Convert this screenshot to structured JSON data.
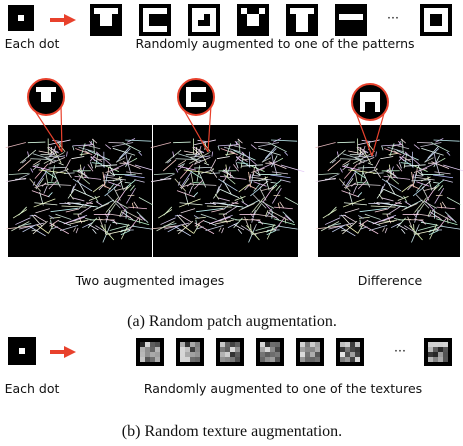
{
  "top": {
    "source_label": "Each dot",
    "target_label": "Randomly augmented to one of the patterns",
    "ellipsis": "···"
  },
  "images": {
    "left_label": "Two augmented images",
    "right_label": "Difference"
  },
  "caption_a": "(a) Random patch augmentation.",
  "bottom": {
    "source_label": "Each dot",
    "target_label": "Randomly augmented to one of the textures",
    "ellipsis": "···"
  },
  "caption_b": "(b) Random texture augmentation."
}
